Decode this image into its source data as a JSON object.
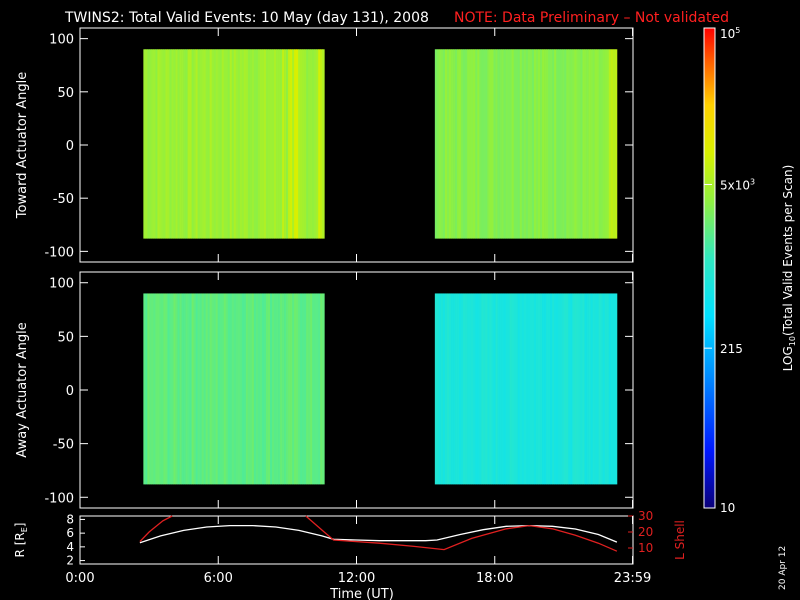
{
  "title": {
    "main": "TWINS2: Total Valid Events: 10 May (day 131), 2008",
    "note": "NOTE: Data Preliminary – Not validated",
    "note_color": "#ff2020"
  },
  "colors": {
    "background": "#000000",
    "axes": "#ffffff",
    "r_line": "#ffffff",
    "lshell_line": "#e02020"
  },
  "date_stamp": "20 Apr 12",
  "chart_data": [
    {
      "type": "heatmap",
      "name": "toward",
      "ylabel": "Toward Actuator Angle",
      "ylim": [
        -110,
        110
      ],
      "yticks": [
        100,
        50,
        0,
        -50,
        -100
      ],
      "xlim": [
        0,
        24
      ],
      "blocks": [
        {
          "x": [
            2.75,
            10.6
          ],
          "y": [
            -88,
            90
          ],
          "level": 0.66,
          "variation": 0.05,
          "bright_stripes": [
            8.8,
            9.1,
            9.4,
            10.4
          ]
        },
        {
          "x": [
            15.4,
            23.3
          ],
          "y": [
            -88,
            90
          ],
          "level": 0.63,
          "variation": 0.04,
          "bright_stripes": [
            23.05,
            23.2
          ]
        }
      ]
    },
    {
      "type": "heatmap",
      "name": "away",
      "ylabel": "Away Actuator Angle",
      "ylim": [
        -110,
        110
      ],
      "yticks": [
        100,
        50,
        0,
        -50,
        -100
      ],
      "xlim": [
        0,
        24
      ],
      "blocks": [
        {
          "x": [
            2.75,
            10.6
          ],
          "y": [
            -88,
            90
          ],
          "level": 0.58,
          "variation": 0.04,
          "bright_stripes": []
        },
        {
          "x": [
            15.4,
            23.3
          ],
          "y": [
            -88,
            90
          ],
          "level": 0.47,
          "variation": 0.04,
          "bright_stripes": []
        }
      ]
    },
    {
      "type": "line",
      "name": "orbit",
      "xlabel": "Time (UT)",
      "xticks": [
        "0:00",
        "6:00",
        "12:00",
        "18:00",
        "23:59"
      ],
      "xtick_values": [
        0,
        6,
        12,
        18,
        23.98
      ],
      "xlim": [
        0,
        24
      ],
      "left_axis": {
        "label": "R [R",
        "label_sub": "E",
        "label_end": "]",
        "ylim": [
          1.5,
          8.5
        ],
        "yticks": [
          2,
          4,
          6,
          8
        ]
      },
      "right_axis": {
        "label": "L Shell",
        "ylim": [
          0,
          30
        ],
        "yticks": [
          10,
          20,
          30
        ],
        "tick_labels": [
          "10",
          "20",
          "30"
        ]
      },
      "series": [
        {
          "axis": "left",
          "x": [
            2.6,
            3.5,
            4.5,
            5.5,
            6.5,
            7.5,
            8.5,
            9.5,
            10.5,
            11,
            12,
            13,
            14,
            15,
            15.5,
            16.5,
            17.5,
            18.5,
            19.5,
            20.5,
            21.5,
            22.5,
            23.3
          ],
          "y": [
            4.6,
            5.6,
            6.4,
            6.9,
            7.1,
            7.1,
            6.9,
            6.4,
            5.6,
            5.1,
            5.0,
            4.9,
            4.9,
            4.9,
            5.0,
            5.8,
            6.5,
            7.0,
            7.1,
            7.0,
            6.6,
            5.8,
            4.7
          ]
        },
        {
          "axis": "right",
          "x": [
            2.6,
            3.0,
            3.6,
            4.0
          ],
          "y": [
            14,
            20,
            27,
            30
          ]
        },
        {
          "axis": "right",
          "x": [
            9.8,
            10.6,
            11,
            13,
            14.5,
            15.8,
            17,
            18.5,
            19.5,
            20.5,
            21.5,
            22.5,
            23.3
          ],
          "y": [
            30,
            20,
            15,
            13,
            11,
            9,
            16,
            22,
            24,
            22,
            18,
            13,
            8
          ]
        }
      ]
    },
    {
      "type": "colorbar",
      "label": "LOG",
      "label_sub": "10",
      "label_rest": "(Total Valid Events per Scan)",
      "ticks": [
        {
          "base": "10",
          "exp": "5",
          "frac": 1.0
        },
        {
          "base": "5x10",
          "exp": "3",
          "frac": 0.674
        },
        {
          "base": "215",
          "exp": "",
          "frac": 0.333
        },
        {
          "base": "10",
          "exp": "",
          "frac": 0.0
        }
      ]
    }
  ]
}
